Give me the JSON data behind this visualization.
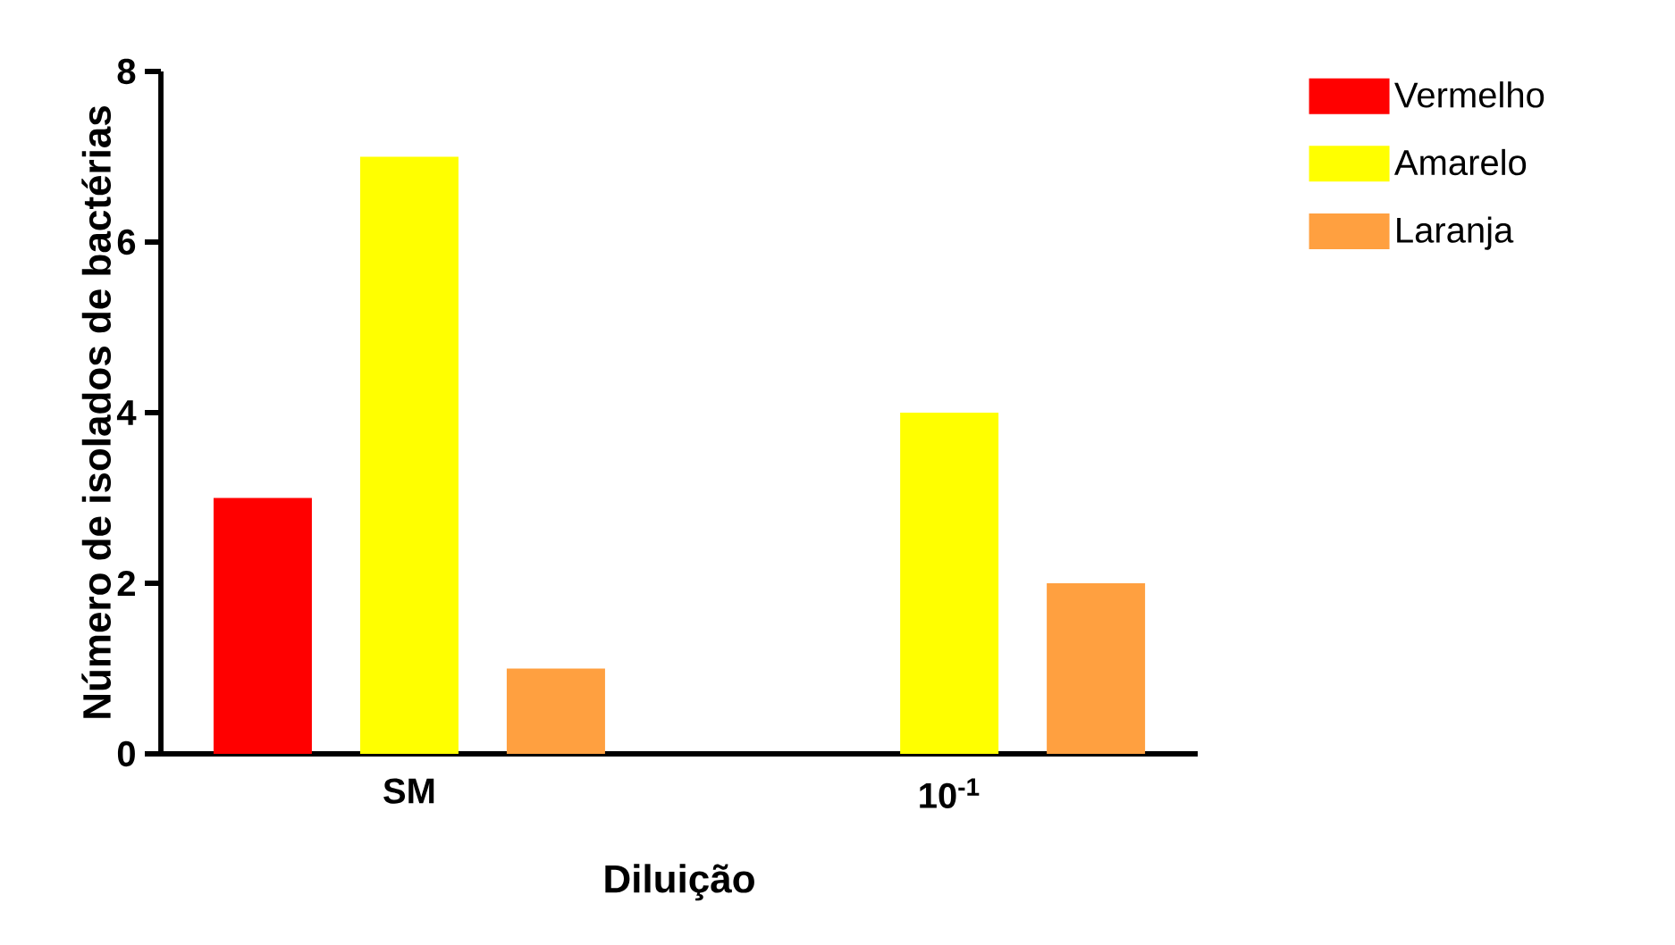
{
  "chart_data": {
    "type": "bar",
    "xlabel": "Diluição",
    "ylabel": "Número de isolados de bactérias",
    "categories": [
      "SM",
      "10$^{-1}$"
    ],
    "series": [
      {
        "name": "Vermelho",
        "color": "#ff0000",
        "values": [
          3,
          0
        ]
      },
      {
        "name": "Amarelo",
        "color": "#ffff00",
        "values": [
          7,
          4
        ]
      },
      {
        "name": "Laranja",
        "color": "#ffa040",
        "values": [
          1,
          2
        ]
      }
    ],
    "ylim": [
      0,
      8
    ],
    "yticks": [
      0,
      2,
      4,
      6,
      8
    ],
    "grid": false,
    "legend": "top right"
  }
}
